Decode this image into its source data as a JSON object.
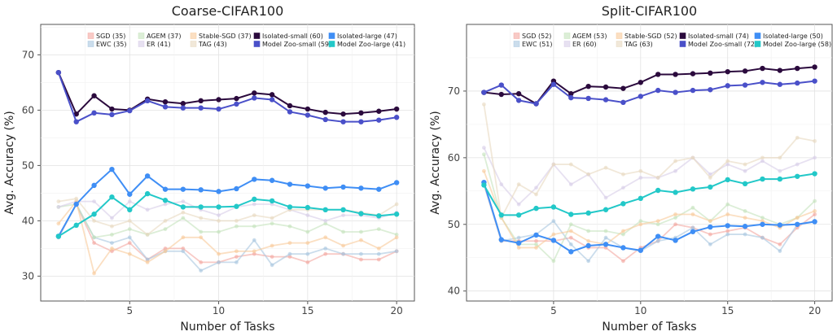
{
  "chart_data": [
    {
      "type": "line",
      "title": "Coarse-CIFAR100",
      "xlabel": "Number of Tasks",
      "ylabel": "Avg. Accuracy (%)",
      "xlim": [
        0,
        21
      ],
      "ylim": [
        25.5,
        75.5
      ],
      "xticks": [
        5,
        10,
        15,
        20
      ],
      "yticks": [
        30,
        40,
        50,
        60,
        70
      ],
      "grid": true,
      "legend_position": "top",
      "x": [
        1,
        2,
        3,
        4,
        5,
        6,
        7,
        8,
        9,
        10,
        11,
        12,
        13,
        14,
        15,
        16,
        17,
        18,
        19,
        20
      ],
      "series": [
        {
          "name": "SGD (35)",
          "color": "#f4a6a0",
          "opacity": 0.6,
          "marker": false,
          "values": [
            37.0,
            43.0,
            36.0,
            34.5,
            36.0,
            33.0,
            35.0,
            35.0,
            32.5,
            32.5,
            33.5,
            34.0,
            33.5,
            33.5,
            32.5,
            34.0,
            34.0,
            33.0,
            33.0,
            34.5
          ]
        },
        {
          "name": "EWC (35)",
          "color": "#a8c6e0",
          "opacity": 0.6,
          "marker": false,
          "values": [
            37.0,
            43.0,
            37.0,
            36.0,
            37.0,
            33.0,
            34.5,
            34.5,
            31.0,
            32.5,
            32.5,
            36.5,
            32.0,
            34.0,
            34.0,
            35.0,
            34.0,
            34.0,
            34.0,
            34.5
          ]
        },
        {
          "name": "AGEM (37)",
          "color": "#c5e3bc",
          "opacity": 0.6,
          "marker": false,
          "values": [
            42.5,
            43.0,
            37.0,
            37.5,
            38.5,
            37.5,
            38.5,
            40.5,
            38.0,
            38.0,
            39.0,
            39.0,
            39.5,
            39.0,
            38.0,
            39.5,
            38.0,
            38.0,
            38.5,
            37.5
          ]
        },
        {
          "name": "ER (41)",
          "color": "#d7cde8",
          "opacity": 0.6,
          "marker": false,
          "values": [
            42.5,
            43.5,
            43.5,
            40.5,
            43.5,
            42.0,
            43.0,
            43.5,
            42.0,
            41.0,
            42.5,
            43.0,
            43.0,
            42.0,
            41.0,
            40.0,
            41.0,
            41.0,
            40.5,
            41.5
          ]
        },
        {
          "name": "Stable-SGD (37)",
          "color": "#f9c99a",
          "opacity": 0.6,
          "marker": false,
          "values": [
            39.5,
            43.5,
            30.5,
            35.0,
            34.0,
            32.5,
            34.5,
            37.0,
            37.0,
            34.0,
            34.5,
            34.5,
            35.5,
            36.0,
            36.0,
            37.0,
            35.5,
            36.5,
            35.0,
            37.0
          ]
        },
        {
          "name": "TAG (43)",
          "color": "#e8d8c0",
          "opacity": 0.6,
          "marker": false,
          "values": [
            43.5,
            44.0,
            40.0,
            39.0,
            40.0,
            37.5,
            40.0,
            41.5,
            40.5,
            40.0,
            40.0,
            41.0,
            40.5,
            42.0,
            42.0,
            42.0,
            42.0,
            41.5,
            41.0,
            43.0
          ]
        },
        {
          "name": "Isolated-small (60)",
          "color": "#2b0a3d",
          "opacity": 1,
          "marker": true,
          "values": [
            66.8,
            59.3,
            62.6,
            60.2,
            60.0,
            62.0,
            61.5,
            61.2,
            61.7,
            61.9,
            62.1,
            63.1,
            62.8,
            60.8,
            60.2,
            59.6,
            59.3,
            59.5,
            59.8,
            60.2
          ]
        },
        {
          "name": "Model Zoo-small (59)",
          "color": "#4a50c9",
          "opacity": 1,
          "marker": true,
          "values": [
            66.8,
            57.9,
            59.5,
            59.2,
            59.9,
            61.7,
            60.6,
            60.4,
            60.4,
            60.2,
            61.1,
            62.2,
            61.9,
            59.7,
            59.1,
            58.3,
            57.9,
            57.9,
            58.2,
            58.7
          ]
        },
        {
          "name": "Isolated-large (47)",
          "color": "#3f8ef5",
          "opacity": 1,
          "marker": true,
          "values": [
            37.2,
            43.0,
            46.4,
            49.3,
            44.8,
            48.1,
            45.7,
            45.7,
            45.6,
            45.3,
            45.8,
            47.5,
            47.3,
            46.6,
            46.3,
            45.9,
            46.1,
            45.9,
            45.7,
            46.9
          ]
        },
        {
          "name": "Model Zoo-large (41)",
          "color": "#22c8c8",
          "opacity": 1,
          "marker": true,
          "values": [
            37.2,
            39.2,
            41.2,
            44.3,
            42.0,
            44.9,
            43.7,
            42.5,
            42.5,
            42.5,
            42.6,
            43.9,
            43.6,
            42.5,
            42.4,
            42.0,
            42.0,
            41.3,
            40.9,
            41.2
          ]
        }
      ]
    },
    {
      "type": "line",
      "title": "Split-CIFAR100",
      "xlabel": "Number of Tasks",
      "ylabel": "Avg. Accuracy (%)",
      "xlim": [
        0,
        21
      ],
      "ylim": [
        38.5,
        80.0
      ],
      "xticks": [
        5,
        10,
        15,
        20
      ],
      "yticks": [
        40,
        50,
        60,
        70
      ],
      "grid": true,
      "legend_position": "top",
      "x": [
        1,
        2,
        3,
        4,
        5,
        6,
        7,
        8,
        9,
        10,
        11,
        12,
        13,
        14,
        15,
        16,
        17,
        18,
        19,
        20
      ],
      "series": [
        {
          "name": "SGD (52)",
          "color": "#f4a6a0",
          "opacity": 0.6,
          "marker": false,
          "values": [
            56.0,
            47.5,
            47.5,
            47.5,
            47.5,
            48.0,
            46.5,
            46.5,
            44.5,
            46.5,
            47.5,
            50.0,
            49.5,
            48.5,
            49.0,
            49.5,
            48.0,
            47.0,
            49.5,
            51.5
          ]
        },
        {
          "name": "EWC (51)",
          "color": "#a8c6e0",
          "opacity": 0.6,
          "marker": false,
          "values": [
            56.0,
            47.5,
            48.0,
            48.5,
            50.5,
            47.0,
            44.5,
            48.0,
            46.5,
            46.0,
            47.5,
            48.0,
            49.5,
            47.0,
            48.5,
            48.5,
            48.0,
            46.0,
            50.0,
            50.5
          ]
        },
        {
          "name": "AGEM (53)",
          "color": "#c5e3bc",
          "opacity": 0.6,
          "marker": false,
          "values": [
            60.5,
            51.0,
            47.0,
            47.0,
            44.5,
            50.0,
            49.0,
            49.0,
            48.5,
            50.5,
            50.0,
            51.0,
            52.5,
            50.5,
            53.0,
            52.0,
            51.0,
            50.0,
            51.0,
            53.5
          ]
        },
        {
          "name": "ER (60)",
          "color": "#d7cde8",
          "opacity": 0.6,
          "marker": false,
          "values": [
            61.5,
            56.0,
            53.0,
            55.5,
            59.0,
            56.0,
            57.5,
            54.0,
            55.5,
            57.0,
            57.0,
            58.0,
            60.0,
            57.5,
            59.0,
            58.0,
            59.5,
            58.0,
            59.0,
            60.0
          ]
        },
        {
          "name": "Stable-SGD (52)",
          "color": "#f9c99a",
          "opacity": 0.6,
          "marker": false,
          "values": [
            58.0,
            51.0,
            46.5,
            46.5,
            48.5,
            49.0,
            47.5,
            47.0,
            49.0,
            50.0,
            50.5,
            51.5,
            51.5,
            50.5,
            51.5,
            51.0,
            50.5,
            49.5,
            51.0,
            52.0
          ]
        },
        {
          "name": "TAG (63)",
          "color": "#e8d8c0",
          "opacity": 0.6,
          "marker": false,
          "values": [
            68.0,
            51.0,
            56.0,
            54.5,
            59.0,
            59.0,
            57.5,
            58.5,
            57.5,
            58.0,
            57.0,
            59.5,
            60.0,
            57.0,
            59.5,
            59.0,
            60.0,
            60.0,
            63.0,
            62.5
          ]
        },
        {
          "name": "Isolated-small (74)",
          "color": "#2b0a3d",
          "opacity": 1,
          "marker": true,
          "values": [
            69.8,
            69.5,
            69.6,
            68.1,
            71.5,
            69.6,
            70.7,
            70.6,
            70.4,
            71.3,
            72.5,
            72.5,
            72.6,
            72.7,
            72.9,
            73.0,
            73.4,
            73.1,
            73.4,
            73.6
          ]
        },
        {
          "name": "Model Zoo-small (72)",
          "color": "#4a50c9",
          "opacity": 1,
          "marker": true,
          "values": [
            69.8,
            70.9,
            68.6,
            68.1,
            71.0,
            69.0,
            68.9,
            68.7,
            68.3,
            69.2,
            70.1,
            69.8,
            70.1,
            70.2,
            70.8,
            70.9,
            71.3,
            71.0,
            71.2,
            71.5
          ]
        },
        {
          "name": "Isolated-large (50)",
          "color": "#3f8ef5",
          "opacity": 1,
          "marker": true,
          "values": [
            56.3,
            47.7,
            47.2,
            48.4,
            47.6,
            45.9,
            46.8,
            47.0,
            46.5,
            46.1,
            48.2,
            47.6,
            48.9,
            49.6,
            49.8,
            49.7,
            50.0,
            49.9,
            50.0,
            50.4
          ]
        },
        {
          "name": "Model Zoo-large (58)",
          "color": "#22c8c8",
          "opacity": 1,
          "marker": true,
          "values": [
            55.9,
            51.4,
            51.4,
            52.4,
            52.6,
            51.5,
            51.7,
            52.2,
            53.1,
            53.9,
            55.1,
            54.8,
            55.3,
            55.6,
            56.7,
            56.1,
            56.8,
            56.8,
            57.2,
            57.6
          ]
        }
      ]
    }
  ]
}
